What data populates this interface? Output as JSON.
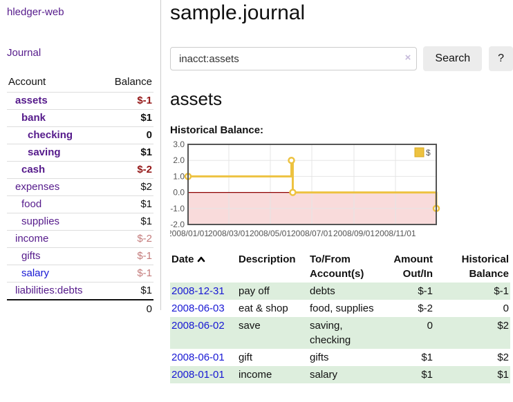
{
  "app": {
    "brand": "hledger-web",
    "nav_journal": "Journal"
  },
  "sidebar": {
    "accounts_header": {
      "account": "Account",
      "balance": "Balance"
    },
    "accounts": [
      {
        "name": "assets",
        "indent": 1,
        "bold": true,
        "balance": "$-1",
        "balance_style": "neg-strong",
        "link_color": "purple"
      },
      {
        "name": "bank",
        "indent": 2,
        "bold": true,
        "balance": "$1",
        "balance_style": "pos-strong",
        "link_color": "purple"
      },
      {
        "name": "checking",
        "indent": 3,
        "bold": true,
        "balance": "0",
        "balance_style": "pos-strong",
        "link_color": "purple"
      },
      {
        "name": "saving",
        "indent": 3,
        "bold": true,
        "balance": "$1",
        "balance_style": "pos-strong",
        "link_color": "purple"
      },
      {
        "name": "cash",
        "indent": 2,
        "bold": true,
        "balance": "$-2",
        "balance_style": "neg-strong",
        "link_color": "purple"
      },
      {
        "name": "expenses",
        "indent": 1,
        "bold": false,
        "balance": "$2",
        "balance_style": "pos",
        "link_color": "purple"
      },
      {
        "name": "food",
        "indent": 2,
        "bold": false,
        "balance": "$1",
        "balance_style": "pos",
        "link_color": "purple"
      },
      {
        "name": "supplies",
        "indent": 2,
        "bold": false,
        "balance": "$1",
        "balance_style": "pos",
        "link_color": "purple"
      },
      {
        "name": "income",
        "indent": 1,
        "bold": false,
        "balance": "$-2",
        "balance_style": "neg-muted",
        "link_color": "purple"
      },
      {
        "name": "gifts",
        "indent": 2,
        "bold": false,
        "balance": "$-1",
        "balance_style": "neg-muted",
        "link_color": "purple"
      },
      {
        "name": "salary",
        "indent": 2,
        "bold": false,
        "balance": "$-1",
        "balance_style": "neg-muted",
        "link_color": "blue"
      },
      {
        "name": "liabilities:debts",
        "indent": 1,
        "bold": false,
        "balance": "$1",
        "balance_style": "pos",
        "link_color": "purple"
      }
    ],
    "total": "0"
  },
  "header": {
    "title": "sample.journal"
  },
  "search": {
    "value": "inacct:assets",
    "clear_icon": "×",
    "button": "Search",
    "help": "?"
  },
  "account_page": {
    "title": "assets",
    "chart_label": "Historical Balance:"
  },
  "chart_data": {
    "type": "line",
    "step": true,
    "title": "Historical Balance",
    "series": [
      {
        "name": "$",
        "color": "#edc240",
        "points": [
          [
            "2008-01-01",
            1
          ],
          [
            "2008-06-01",
            2
          ],
          [
            "2008-06-03",
            0
          ],
          [
            "2008-12-31",
            -1
          ]
        ]
      }
    ],
    "x_range": [
      "2008-01-01",
      "2008-12-31"
    ],
    "ylim": [
      -2,
      3
    ],
    "y_ticks": [
      "3.0",
      "2.0",
      "1.0",
      "0.0",
      "-1.0",
      "-2.0"
    ],
    "x_ticks": [
      {
        "date": "2008-01-01",
        "label": "2008/01/01"
      },
      {
        "date": "2008-03-01",
        "label": "2008/03/01"
      },
      {
        "date": "2008-05-01",
        "label": "2008/05/01"
      },
      {
        "date": "2008-07-01",
        "label": "2008/07/01"
      },
      {
        "date": "2008-09-01",
        "label": "2008/09/01"
      },
      {
        "date": "2008-11-01",
        "label": "2008/11/01"
      }
    ],
    "grid": true,
    "legend_position": "top-right",
    "negative_region_color": "#f9dbdb",
    "zero_line_color": "#8b0000"
  },
  "register": {
    "headers": [
      {
        "line1": "Date",
        "line2": ""
      },
      {
        "line1": "Description",
        "line2": ""
      },
      {
        "line1": "To/From",
        "line2": "Account(s)"
      },
      {
        "line1": "Amount",
        "line2": "Out/In"
      },
      {
        "line1": "Historical",
        "line2": "Balance"
      }
    ],
    "rows": [
      {
        "date": "2008-12-31",
        "description": "pay off",
        "accounts": "debts",
        "amount": "$-1",
        "amount_negative": true,
        "balance": "$-1",
        "balance_negative": true,
        "shaded": true
      },
      {
        "date": "2008-06-03",
        "description": "eat & shop",
        "accounts": "food, supplies",
        "amount": "$-2",
        "amount_negative": true,
        "balance": "0",
        "balance_negative": false,
        "shaded": false
      },
      {
        "date": "2008-06-02",
        "description": "save",
        "accounts": "saving, checking",
        "amount": "0",
        "amount_negative": false,
        "balance": "$2",
        "balance_negative": false,
        "shaded": true
      },
      {
        "date": "2008-06-01",
        "description": "gift",
        "accounts": "gifts",
        "amount": "$1",
        "amount_negative": false,
        "balance": "$2",
        "balance_negative": false,
        "shaded": false
      },
      {
        "date": "2008-01-01",
        "description": "income",
        "accounts": "salary",
        "amount": "$1",
        "amount_negative": false,
        "balance": "$1",
        "balance_negative": false,
        "shaded": true
      }
    ]
  }
}
